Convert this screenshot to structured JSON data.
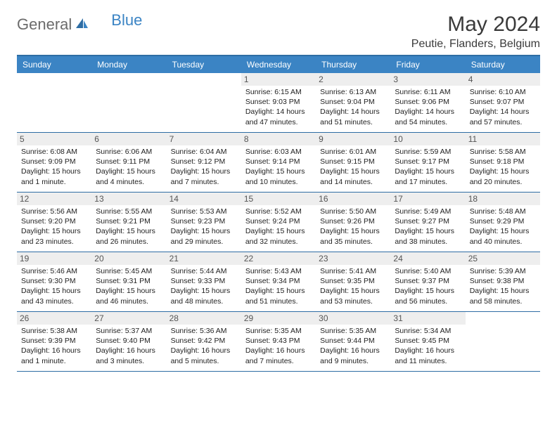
{
  "brand": {
    "general": "General",
    "blue": "Blue"
  },
  "title": "May 2024",
  "location": "Peutie, Flanders, Belgium",
  "colors": {
    "header_bg": "#3b84c4",
    "border": "#2e6da4",
    "daynum_bg": "#eeeeee",
    "text": "#222222"
  },
  "weekdays": [
    "Sunday",
    "Monday",
    "Tuesday",
    "Wednesday",
    "Thursday",
    "Friday",
    "Saturday"
  ],
  "weeks": [
    [
      null,
      null,
      null,
      {
        "n": "1",
        "sunrise": "6:15 AM",
        "sunset": "9:03 PM",
        "daylight": "14 hours and 47 minutes."
      },
      {
        "n": "2",
        "sunrise": "6:13 AM",
        "sunset": "9:04 PM",
        "daylight": "14 hours and 51 minutes."
      },
      {
        "n": "3",
        "sunrise": "6:11 AM",
        "sunset": "9:06 PM",
        "daylight": "14 hours and 54 minutes."
      },
      {
        "n": "4",
        "sunrise": "6:10 AM",
        "sunset": "9:07 PM",
        "daylight": "14 hours and 57 minutes."
      }
    ],
    [
      {
        "n": "5",
        "sunrise": "6:08 AM",
        "sunset": "9:09 PM",
        "daylight": "15 hours and 1 minute."
      },
      {
        "n": "6",
        "sunrise": "6:06 AM",
        "sunset": "9:11 PM",
        "daylight": "15 hours and 4 minutes."
      },
      {
        "n": "7",
        "sunrise": "6:04 AM",
        "sunset": "9:12 PM",
        "daylight": "15 hours and 7 minutes."
      },
      {
        "n": "8",
        "sunrise": "6:03 AM",
        "sunset": "9:14 PM",
        "daylight": "15 hours and 10 minutes."
      },
      {
        "n": "9",
        "sunrise": "6:01 AM",
        "sunset": "9:15 PM",
        "daylight": "15 hours and 14 minutes."
      },
      {
        "n": "10",
        "sunrise": "5:59 AM",
        "sunset": "9:17 PM",
        "daylight": "15 hours and 17 minutes."
      },
      {
        "n": "11",
        "sunrise": "5:58 AM",
        "sunset": "9:18 PM",
        "daylight": "15 hours and 20 minutes."
      }
    ],
    [
      {
        "n": "12",
        "sunrise": "5:56 AM",
        "sunset": "9:20 PM",
        "daylight": "15 hours and 23 minutes."
      },
      {
        "n": "13",
        "sunrise": "5:55 AM",
        "sunset": "9:21 PM",
        "daylight": "15 hours and 26 minutes."
      },
      {
        "n": "14",
        "sunrise": "5:53 AM",
        "sunset": "9:23 PM",
        "daylight": "15 hours and 29 minutes."
      },
      {
        "n": "15",
        "sunrise": "5:52 AM",
        "sunset": "9:24 PM",
        "daylight": "15 hours and 32 minutes."
      },
      {
        "n": "16",
        "sunrise": "5:50 AM",
        "sunset": "9:26 PM",
        "daylight": "15 hours and 35 minutes."
      },
      {
        "n": "17",
        "sunrise": "5:49 AM",
        "sunset": "9:27 PM",
        "daylight": "15 hours and 38 minutes."
      },
      {
        "n": "18",
        "sunrise": "5:48 AM",
        "sunset": "9:29 PM",
        "daylight": "15 hours and 40 minutes."
      }
    ],
    [
      {
        "n": "19",
        "sunrise": "5:46 AM",
        "sunset": "9:30 PM",
        "daylight": "15 hours and 43 minutes."
      },
      {
        "n": "20",
        "sunrise": "5:45 AM",
        "sunset": "9:31 PM",
        "daylight": "15 hours and 46 minutes."
      },
      {
        "n": "21",
        "sunrise": "5:44 AM",
        "sunset": "9:33 PM",
        "daylight": "15 hours and 48 minutes."
      },
      {
        "n": "22",
        "sunrise": "5:43 AM",
        "sunset": "9:34 PM",
        "daylight": "15 hours and 51 minutes."
      },
      {
        "n": "23",
        "sunrise": "5:41 AM",
        "sunset": "9:35 PM",
        "daylight": "15 hours and 53 minutes."
      },
      {
        "n": "24",
        "sunrise": "5:40 AM",
        "sunset": "9:37 PM",
        "daylight": "15 hours and 56 minutes."
      },
      {
        "n": "25",
        "sunrise": "5:39 AM",
        "sunset": "9:38 PM",
        "daylight": "15 hours and 58 minutes."
      }
    ],
    [
      {
        "n": "26",
        "sunrise": "5:38 AM",
        "sunset": "9:39 PM",
        "daylight": "16 hours and 1 minute."
      },
      {
        "n": "27",
        "sunrise": "5:37 AM",
        "sunset": "9:40 PM",
        "daylight": "16 hours and 3 minutes."
      },
      {
        "n": "28",
        "sunrise": "5:36 AM",
        "sunset": "9:42 PM",
        "daylight": "16 hours and 5 minutes."
      },
      {
        "n": "29",
        "sunrise": "5:35 AM",
        "sunset": "9:43 PM",
        "daylight": "16 hours and 7 minutes."
      },
      {
        "n": "30",
        "sunrise": "5:35 AM",
        "sunset": "9:44 PM",
        "daylight": "16 hours and 9 minutes."
      },
      {
        "n": "31",
        "sunrise": "5:34 AM",
        "sunset": "9:45 PM",
        "daylight": "16 hours and 11 minutes."
      },
      null
    ]
  ],
  "labels": {
    "sunrise": "Sunrise:",
    "sunset": "Sunset:",
    "daylight": "Daylight:"
  }
}
